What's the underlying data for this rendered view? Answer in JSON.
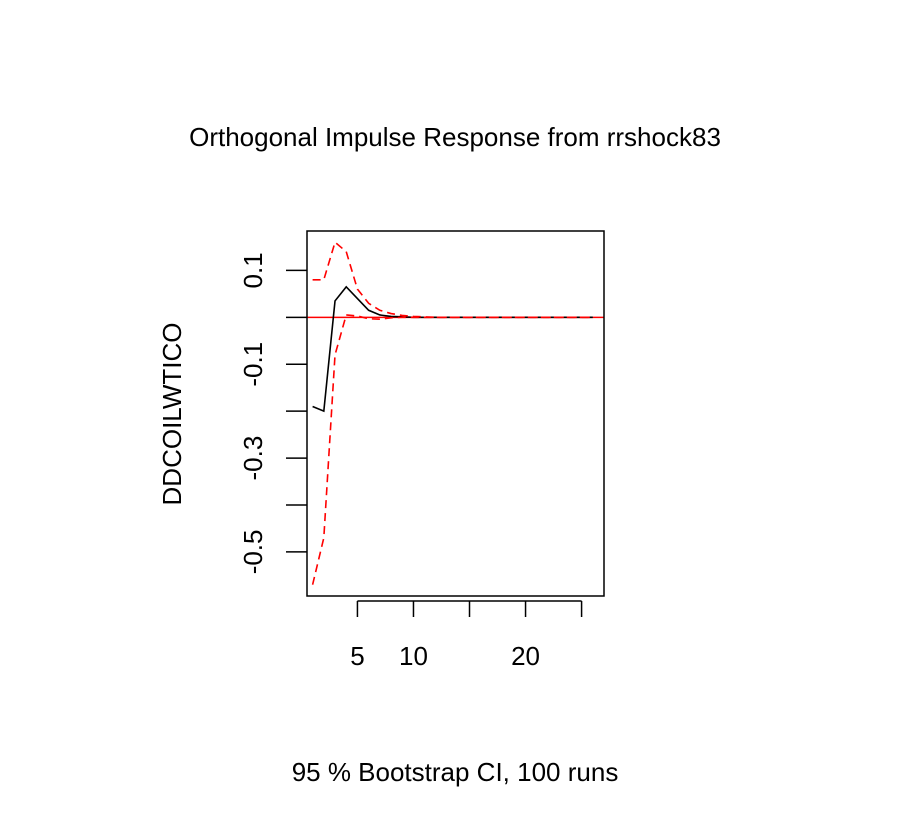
{
  "chart_data": {
    "type": "line",
    "title": "Orthogonal Impulse Response from rrshock83",
    "ylabel": "DDCOILWTICO",
    "xlabel": "95 % Bootstrap CI,  100 runs",
    "xlim": [
      0.5,
      27
    ],
    "ylim": [
      -0.594,
      0.184
    ],
    "x_ticks": [
      5,
      10,
      15,
      20,
      25
    ],
    "x_tick_labels": [
      "5",
      "10",
      "",
      "20",
      ""
    ],
    "y_ticks": [
      0.1,
      0.0,
      -0.1,
      -0.2,
      -0.3,
      -0.4,
      -0.5
    ],
    "y_tick_labels": [
      "0.1",
      "",
      "-0.1",
      "",
      "-0.3",
      "",
      "-0.5"
    ],
    "reference_line": 0,
    "x": [
      1,
      2,
      3,
      4,
      5,
      6,
      7,
      8,
      9,
      10,
      11,
      12,
      13,
      14,
      15,
      16,
      17,
      18,
      19,
      20,
      21,
      22,
      23,
      24,
      25,
      26
    ],
    "series": [
      {
        "values": [
          -0.19,
          -0.2,
          0.035,
          0.065,
          0.04,
          0.015,
          0.005,
          0.002,
          0.001,
          0,
          0,
          0,
          0,
          0,
          0,
          0,
          0,
          0,
          0,
          0,
          0,
          0,
          0,
          0,
          0,
          0
        ],
        "color": "#000000",
        "dash": "solid"
      },
      {
        "values": [
          0.08,
          0.08,
          0.16,
          0.14,
          0.06,
          0.03,
          0.015,
          0.008,
          0.004,
          0.002,
          0.001,
          0,
          0,
          0,
          0,
          0,
          0,
          0,
          0,
          0,
          0,
          0,
          0,
          0,
          0,
          0
        ],
        "color": "#ff0000",
        "dash": "dashed"
      },
      {
        "values": [
          -0.57,
          -0.47,
          -0.08,
          0.005,
          0.003,
          -0.003,
          -0.004,
          -0.001,
          0,
          0,
          0,
          0,
          0,
          0,
          0,
          0,
          0,
          0,
          0,
          0,
          0,
          0,
          0,
          0,
          0,
          0
        ],
        "color": "#ff0000",
        "dash": "dashed"
      }
    ]
  }
}
